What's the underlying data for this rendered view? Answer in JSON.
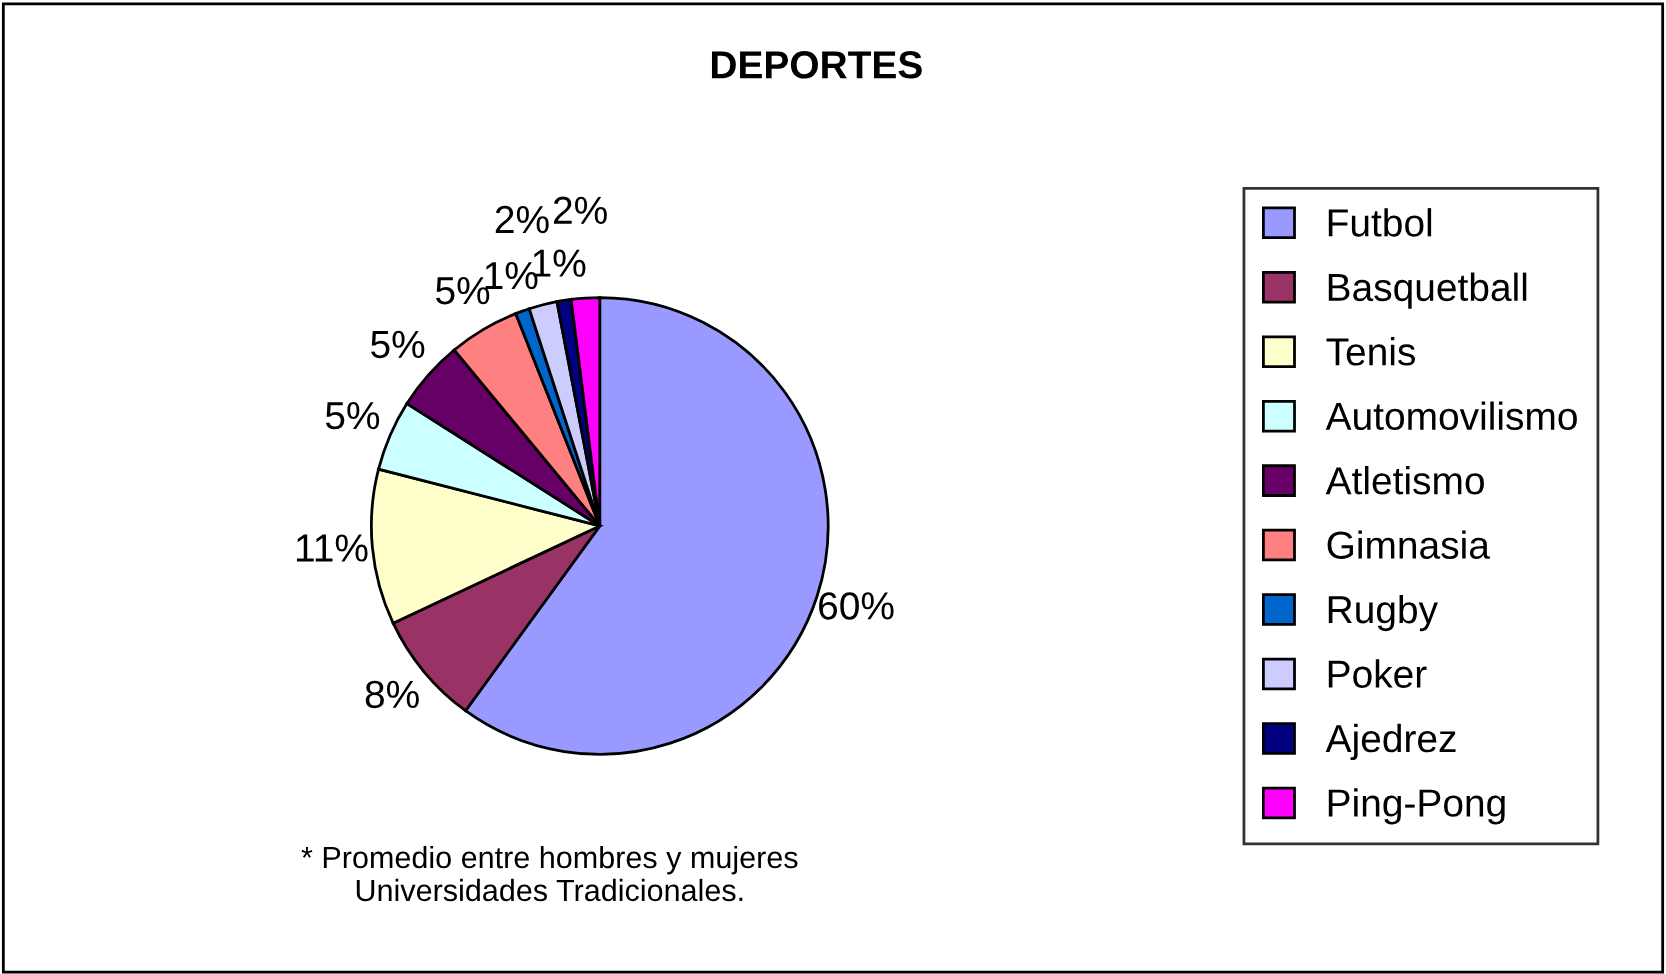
{
  "chart_data": {
    "type": "pie",
    "title": "DEPORTES",
    "categories": [
      "Futbol",
      "Basquetball",
      "Tenis",
      "Automovilismo",
      "Atletismo",
      "Gimnasia",
      "Rugby",
      "Poker",
      "Ajedrez",
      "Ping-Pong"
    ],
    "values": [
      60,
      8,
      11,
      5,
      5,
      5,
      1,
      2,
      1,
      2
    ],
    "colors": [
      "#9999ff",
      "#993366",
      "#ffffcc",
      "#ccffff",
      "#660066",
      "#ff8080",
      "#0066cc",
      "#ccccff",
      "#000080",
      "#ff00ff"
    ],
    "value_labels": [
      "60%",
      "8%",
      "11%",
      "5%",
      "5%",
      "5%",
      "1%",
      "2%",
      "1%",
      "2%"
    ],
    "legend": "right",
    "annotations": [
      "* Promedio entre hombres y mujeres\nUniversidades Tradicionales."
    ]
  }
}
